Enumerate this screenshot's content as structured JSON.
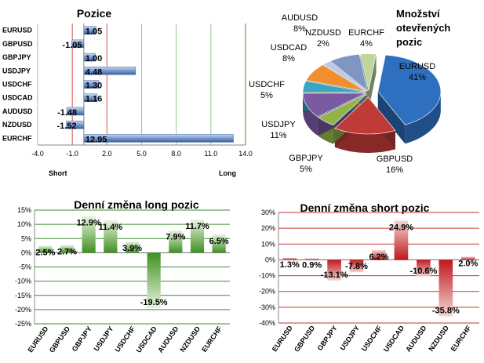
{
  "chart_data": [
    {
      "type": "bar",
      "orientation": "horizontal",
      "title": "Pozice",
      "categories": [
        "EURUSD",
        "GBPUSD",
        "GBPJPY",
        "USDJPY",
        "USDCHF",
        "USDCAD",
        "AUDUSD",
        "NZDUSD",
        "EURCHF"
      ],
      "values": [
        1.05,
        -1.05,
        1.0,
        4.48,
        1.3,
        1.16,
        -1.48,
        -1.52,
        12.95
      ],
      "value_labels": [
        "1.05",
        "-1.05",
        "1.00",
        "4.48",
        "1.30",
        "1.16",
        "-1.48",
        "-1.52",
        "12.95"
      ],
      "xlim": [
        -4.0,
        14.0
      ],
      "xticks": [
        "-4.0",
        "-1.0",
        "2.0",
        "5.0",
        "8.0",
        "11.0",
        "14.0"
      ],
      "xtick_values": [
        -4,
        -1,
        2,
        5,
        8,
        11,
        14
      ],
      "left_label": "Short",
      "right_label": "Long",
      "grid": true
    },
    {
      "type": "pie",
      "title_lines": [
        "Množství",
        "otevřených",
        "pozic"
      ],
      "categories": [
        "EURUSD",
        "GBPUSD",
        "GBPJPY",
        "USDJPY",
        "USDCHF",
        "USDCAD",
        "NZDUSD",
        "AUDUSD",
        "EURCHF"
      ],
      "values": [
        41,
        16,
        5,
        11,
        5,
        8,
        2,
        8,
        4
      ],
      "labels": [
        "41%",
        "16%",
        "5%",
        "11%",
        "5%",
        "8%",
        "2%",
        "8%",
        "4%"
      ],
      "colors": [
        "#2e6fbf",
        "#c03a37",
        "#92b24a",
        "#7a5aa3",
        "#37a8c4",
        "#f08f30",
        "#b8c8e6",
        "#7f96c4",
        "#bfd69e"
      ]
    },
    {
      "type": "bar",
      "title": "Denní změna long pozic",
      "categories": [
        "EURUSD",
        "GBPUSD",
        "GBPJPY",
        "USDJPY",
        "USDCHF",
        "USDCAD",
        "AUDUSD",
        "NZDUSD",
        "EURCHF"
      ],
      "values": [
        2.5,
        2.7,
        12.9,
        11.4,
        3.9,
        -19.5,
        7.9,
        11.7,
        6.5
      ],
      "value_labels": [
        "2.5%",
        "2.7%",
        "12.9%",
        "11.4%",
        "3.9%",
        "-19.5%",
        "7.9%",
        "11.7%",
        "6.5%"
      ],
      "ylim": [
        -25,
        15
      ],
      "yticks": [
        "15%",
        "10%",
        "5%",
        "0%",
        "-5%",
        "-10%",
        "-15%",
        "-20%",
        "-25%"
      ],
      "ytick_values": [
        15,
        10,
        5,
        0,
        -5,
        -10,
        -15,
        -20,
        -25
      ],
      "color": "#4f9a2b",
      "grid": true
    },
    {
      "type": "bar",
      "title": "Denní změna short pozic",
      "categories": [
        "EURUSD",
        "GBPUSD",
        "GBPJPY",
        "USDJPY",
        "USDCHF",
        "USDCAD",
        "AUDUSD",
        "NZDUSD",
        "EURCHF"
      ],
      "values": [
        1.3,
        0.9,
        -13.1,
        -7.8,
        6.2,
        24.9,
        -10.6,
        -35.8,
        2.0
      ],
      "value_labels": [
        "1.3%",
        "0.9%",
        "-13.1%",
        "-7.8%",
        "6.2%",
        "24.9%",
        "-10.6%",
        "-35.8%",
        "2.0%"
      ],
      "ylim": [
        -40,
        30
      ],
      "yticks": [
        "30%",
        "20%",
        "10%",
        "0%",
        "-10%",
        "-20%",
        "-30%",
        "-40%"
      ],
      "ytick_values": [
        30,
        20,
        10,
        0,
        -10,
        -20,
        -30,
        -40
      ],
      "color": "#c0171b",
      "grid": true
    }
  ]
}
